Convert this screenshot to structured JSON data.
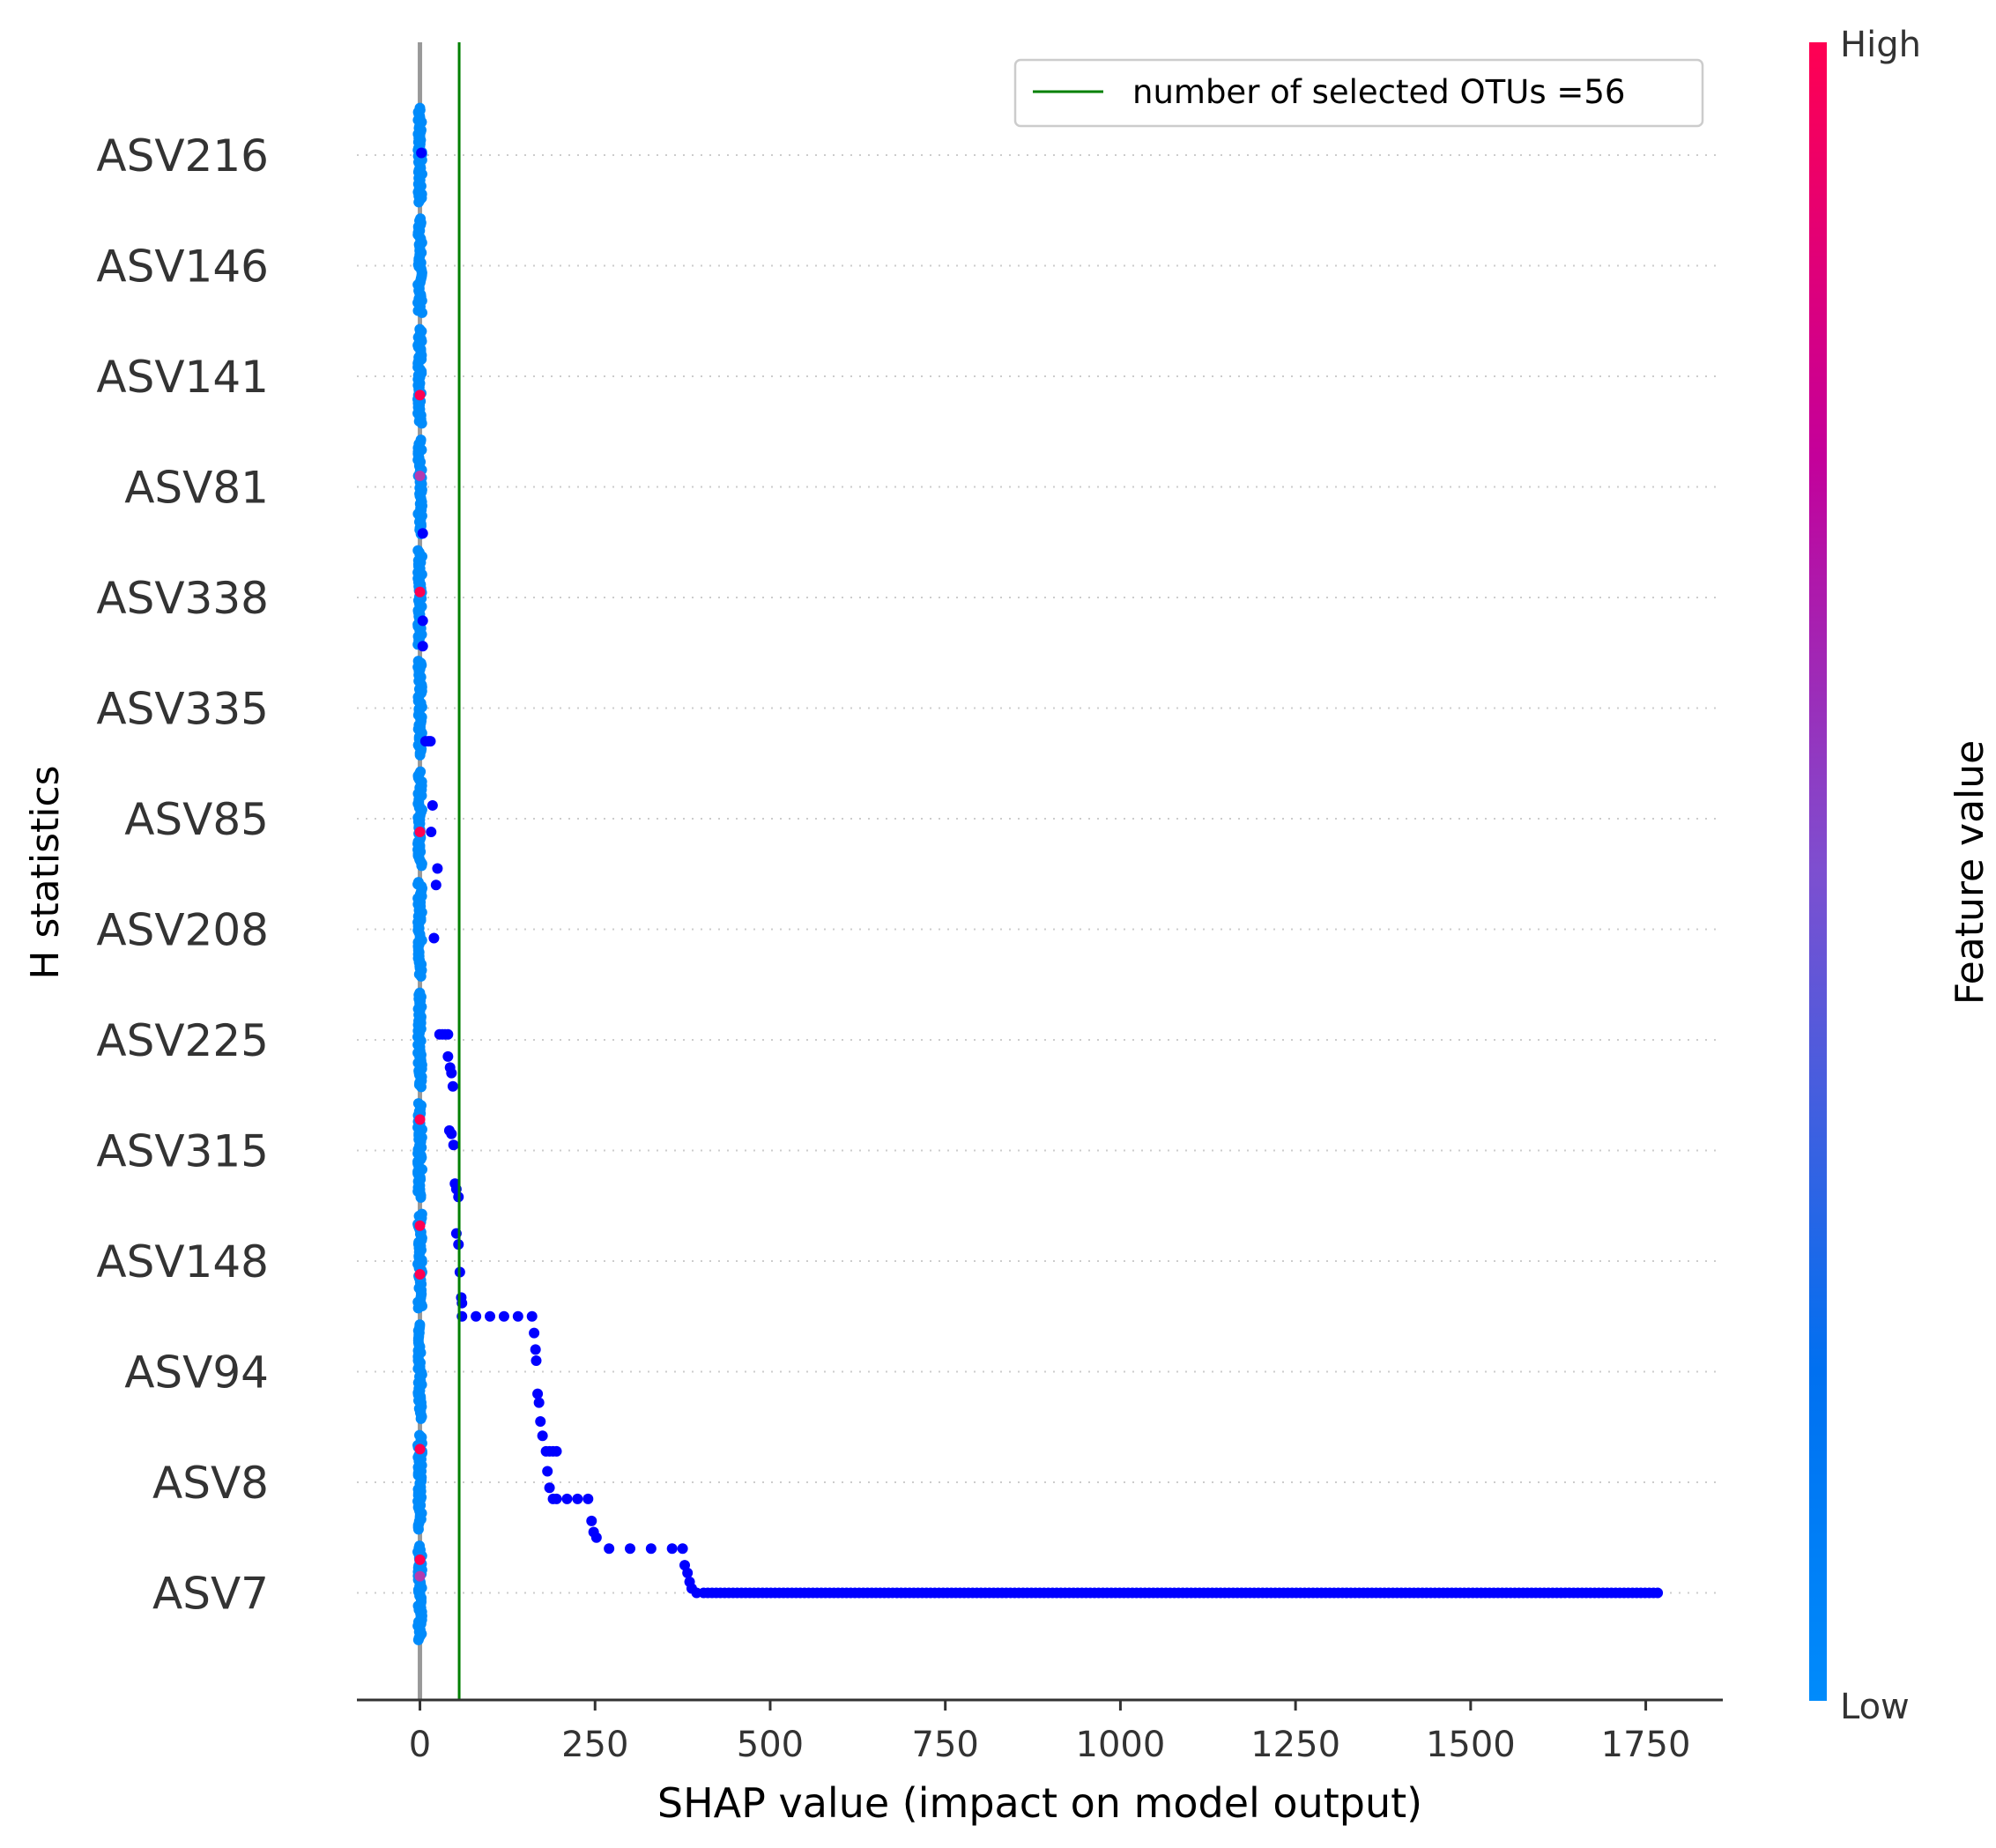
{
  "chart_data": {
    "type": "scatter",
    "subtype": "shap-summary-beeswarm",
    "title": "",
    "xlabel": "SHAP value (impact on model output)",
    "ylabel": "H statistics",
    "xlim": [
      -90,
      1860
    ],
    "xticks": [
      0,
      250,
      500,
      750,
      1000,
      1250,
      1500,
      1750
    ],
    "features": [
      "ASV216",
      "ASV146",
      "ASV141",
      "ASV81",
      "ASV338",
      "ASV335",
      "ASV85",
      "ASV208",
      "ASV225",
      "ASV315",
      "ASV148",
      "ASV94",
      "ASV8",
      "ASV7"
    ],
    "zero_line": {
      "x": 0,
      "color": "#999999"
    },
    "threshold_line": {
      "x": 56,
      "color": "#008000",
      "legend": "number of selected OTUs =56"
    },
    "legend_position": "top-right",
    "grid": "dotted horizontal per feature",
    "colorbar": {
      "label": "Feature value",
      "high_label": "High",
      "low_label": "Low",
      "high_color": "#ff0052",
      "low_color": "#008bfb"
    },
    "highlight_color": "#0000ff",
    "series": [
      {
        "feature": "ASV216",
        "highlight": [
          [
            2,
            0.02
          ]
        ],
        "pink": [],
        "purple": []
      },
      {
        "feature": "ASV146",
        "highlight": [],
        "pink": [],
        "purple": []
      },
      {
        "feature": "ASV141",
        "highlight": [],
        "pink": [
          [
            0,
            -0.17
          ]
        ],
        "purple": []
      },
      {
        "feature": "ASV81",
        "highlight": [
          [
            4,
            -0.42
          ]
        ],
        "pink": [],
        "purple": [
          [
            0,
            0.1
          ]
        ]
      },
      {
        "feature": "ASV338",
        "highlight": [
          [
            4,
            -0.44
          ],
          [
            4,
            -0.21
          ]
        ],
        "pink": [
          [
            0,
            0.05
          ]
        ],
        "purple": []
      },
      {
        "feature": "ASV335",
        "highlight": [
          [
            8,
            -0.3
          ],
          [
            12,
            -0.3
          ],
          [
            15,
            -0.3
          ]
        ],
        "pink": [],
        "purple": []
      },
      {
        "feature": "ASV85",
        "highlight": [
          [
            16,
            -0.12
          ],
          [
            18,
            0.12
          ]
        ],
        "pink": [
          [
            0,
            -0.12
          ]
        ],
        "purple": []
      },
      {
        "feature": "ASV208",
        "highlight": [
          [
            20,
            -0.08
          ],
          [
            23,
            0.4
          ],
          [
            25,
            0.55
          ]
        ],
        "pink": [],
        "purple": []
      },
      {
        "feature": "ASV225",
        "highlight": [
          [
            28,
            0.05
          ],
          [
            32,
            0.05
          ],
          [
            36,
            0.05
          ],
          [
            40,
            0.05
          ],
          [
            40,
            -0.15
          ],
          [
            43,
            -0.25
          ],
          [
            45,
            -0.3
          ],
          [
            47,
            -0.42
          ]
        ],
        "pink": [],
        "purple": []
      },
      {
        "feature": "ASV315",
        "highlight": [
          [
            42,
            0.18
          ],
          [
            45,
            0.15
          ],
          [
            48,
            0.05
          ],
          [
            50,
            -0.3
          ],
          [
            52,
            -0.35
          ],
          [
            55,
            -0.42
          ]
        ],
        "pink": [
          [
            0,
            0.28
          ]
        ],
        "purple": []
      },
      {
        "feature": "ASV148",
        "highlight": [
          [
            52,
            0.25
          ],
          [
            55,
            0.15
          ],
          [
            57,
            -0.1
          ],
          [
            59,
            -0.33
          ],
          [
            60,
            -0.38
          ]
        ],
        "pink": [
          [
            0,
            0.32
          ],
          [
            0,
            -0.12
          ]
        ],
        "purple": []
      },
      {
        "feature": "ASV94",
        "highlight": [
          [
            60,
            0.5
          ],
          [
            80,
            0.5
          ],
          [
            100,
            0.5
          ],
          [
            120,
            0.5
          ],
          [
            140,
            0.5
          ],
          [
            160,
            0.5
          ],
          [
            163,
            0.35
          ],
          [
            165,
            0.2
          ],
          [
            166,
            0.1
          ],
          [
            168,
            -0.2
          ],
          [
            170,
            -0.28
          ],
          [
            172,
            -0.45
          ]
        ],
        "pink": [],
        "purple": []
      },
      {
        "feature": "ASV8",
        "highlight": [
          [
            175,
            0.42
          ],
          [
            180,
            0.28
          ],
          [
            185,
            0.28
          ],
          [
            190,
            0.28
          ],
          [
            195,
            0.28
          ],
          [
            182,
            0.1
          ],
          [
            185,
            -0.05
          ],
          [
            190,
            -0.15
          ],
          [
            195,
            -0.15
          ],
          [
            210,
            -0.15
          ],
          [
            225,
            -0.15
          ],
          [
            240,
            -0.15
          ],
          [
            245,
            -0.35
          ],
          [
            248,
            -0.45
          ],
          [
            252,
            -0.5
          ]
        ],
        "pink": [
          [
            0,
            0.3
          ]
        ],
        "purple": []
      },
      {
        "feature": "ASV7",
        "highlight": [
          [
            270,
            0.4
          ],
          [
            300,
            0.4
          ],
          [
            330,
            0.4
          ],
          [
            360,
            0.4
          ],
          [
            375,
            0.4
          ],
          [
            378,
            0.25
          ],
          [
            382,
            0.18
          ],
          [
            385,
            0.1
          ],
          [
            388,
            0.04
          ],
          [
            395,
            0
          ]
        ],
        "pink": [
          [
            0,
            0.3
          ]
        ],
        "purple": [
          [
            0,
            0.15
          ]
        ]
      }
    ],
    "asv7_long_run": {
      "from": 405,
      "to": 1770
    }
  }
}
